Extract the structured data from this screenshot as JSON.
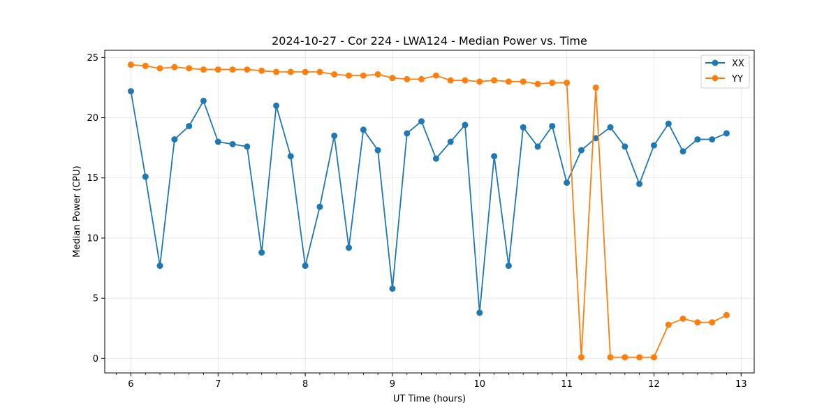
{
  "chart_data": {
    "type": "line",
    "title": "2024-10-27 - Cor 224 - LWA124 - Median Power vs. Time",
    "xlabel": "UT Time (hours)",
    "ylabel": "Median Power (CPU)",
    "xlim": [
      5.7,
      13.15
    ],
    "ylim": [
      -1.2,
      25.6
    ],
    "xticks": [
      6,
      7,
      8,
      9,
      10,
      11,
      12,
      13
    ],
    "yticks": [
      0,
      5,
      10,
      15,
      20,
      25
    ],
    "grid": true,
    "legend_position": "top-right",
    "x": [
      6.0,
      6.167,
      6.333,
      6.5,
      6.667,
      6.833,
      7.0,
      7.167,
      7.333,
      7.5,
      7.667,
      7.833,
      8.0,
      8.167,
      8.333,
      8.5,
      8.667,
      8.833,
      9.0,
      9.167,
      9.333,
      9.5,
      9.667,
      9.833,
      10.0,
      10.167,
      10.333,
      10.5,
      10.667,
      10.833,
      11.0,
      11.167,
      11.333,
      11.5,
      11.667,
      11.833,
      12.0,
      12.167,
      12.333,
      12.5,
      12.667,
      12.833
    ],
    "series": [
      {
        "name": "XX",
        "color": "#1f77b4",
        "values": [
          22.2,
          15.1,
          7.7,
          18.2,
          19.3,
          21.4,
          18.0,
          17.8,
          17.6,
          8.8,
          21.0,
          16.8,
          7.7,
          12.6,
          18.5,
          9.2,
          19.0,
          17.3,
          5.8,
          18.7,
          19.7,
          16.6,
          18.0,
          19.4,
          3.8,
          16.8,
          7.7,
          19.2,
          17.6,
          19.3,
          14.6,
          17.3,
          18.3,
          19.2,
          17.6,
          14.5,
          17.7,
          19.5,
          17.2,
          18.2,
          18.2,
          18.7
        ]
      },
      {
        "name": "YY",
        "color": "#ff7f0e",
        "values": [
          24.4,
          24.3,
          24.1,
          24.2,
          24.1,
          24.0,
          24.0,
          24.0,
          24.0,
          23.9,
          23.8,
          23.8,
          23.8,
          23.8,
          23.6,
          23.5,
          23.5,
          23.6,
          23.3,
          23.2,
          23.2,
          23.5,
          23.1,
          23.1,
          23.0,
          23.1,
          23.0,
          23.0,
          22.8,
          22.9,
          22.9,
          0.1,
          22.5,
          0.1,
          0.1,
          0.1,
          0.1,
          2.8,
          3.3,
          3.0,
          3.0,
          3.6
        ]
      }
    ]
  }
}
